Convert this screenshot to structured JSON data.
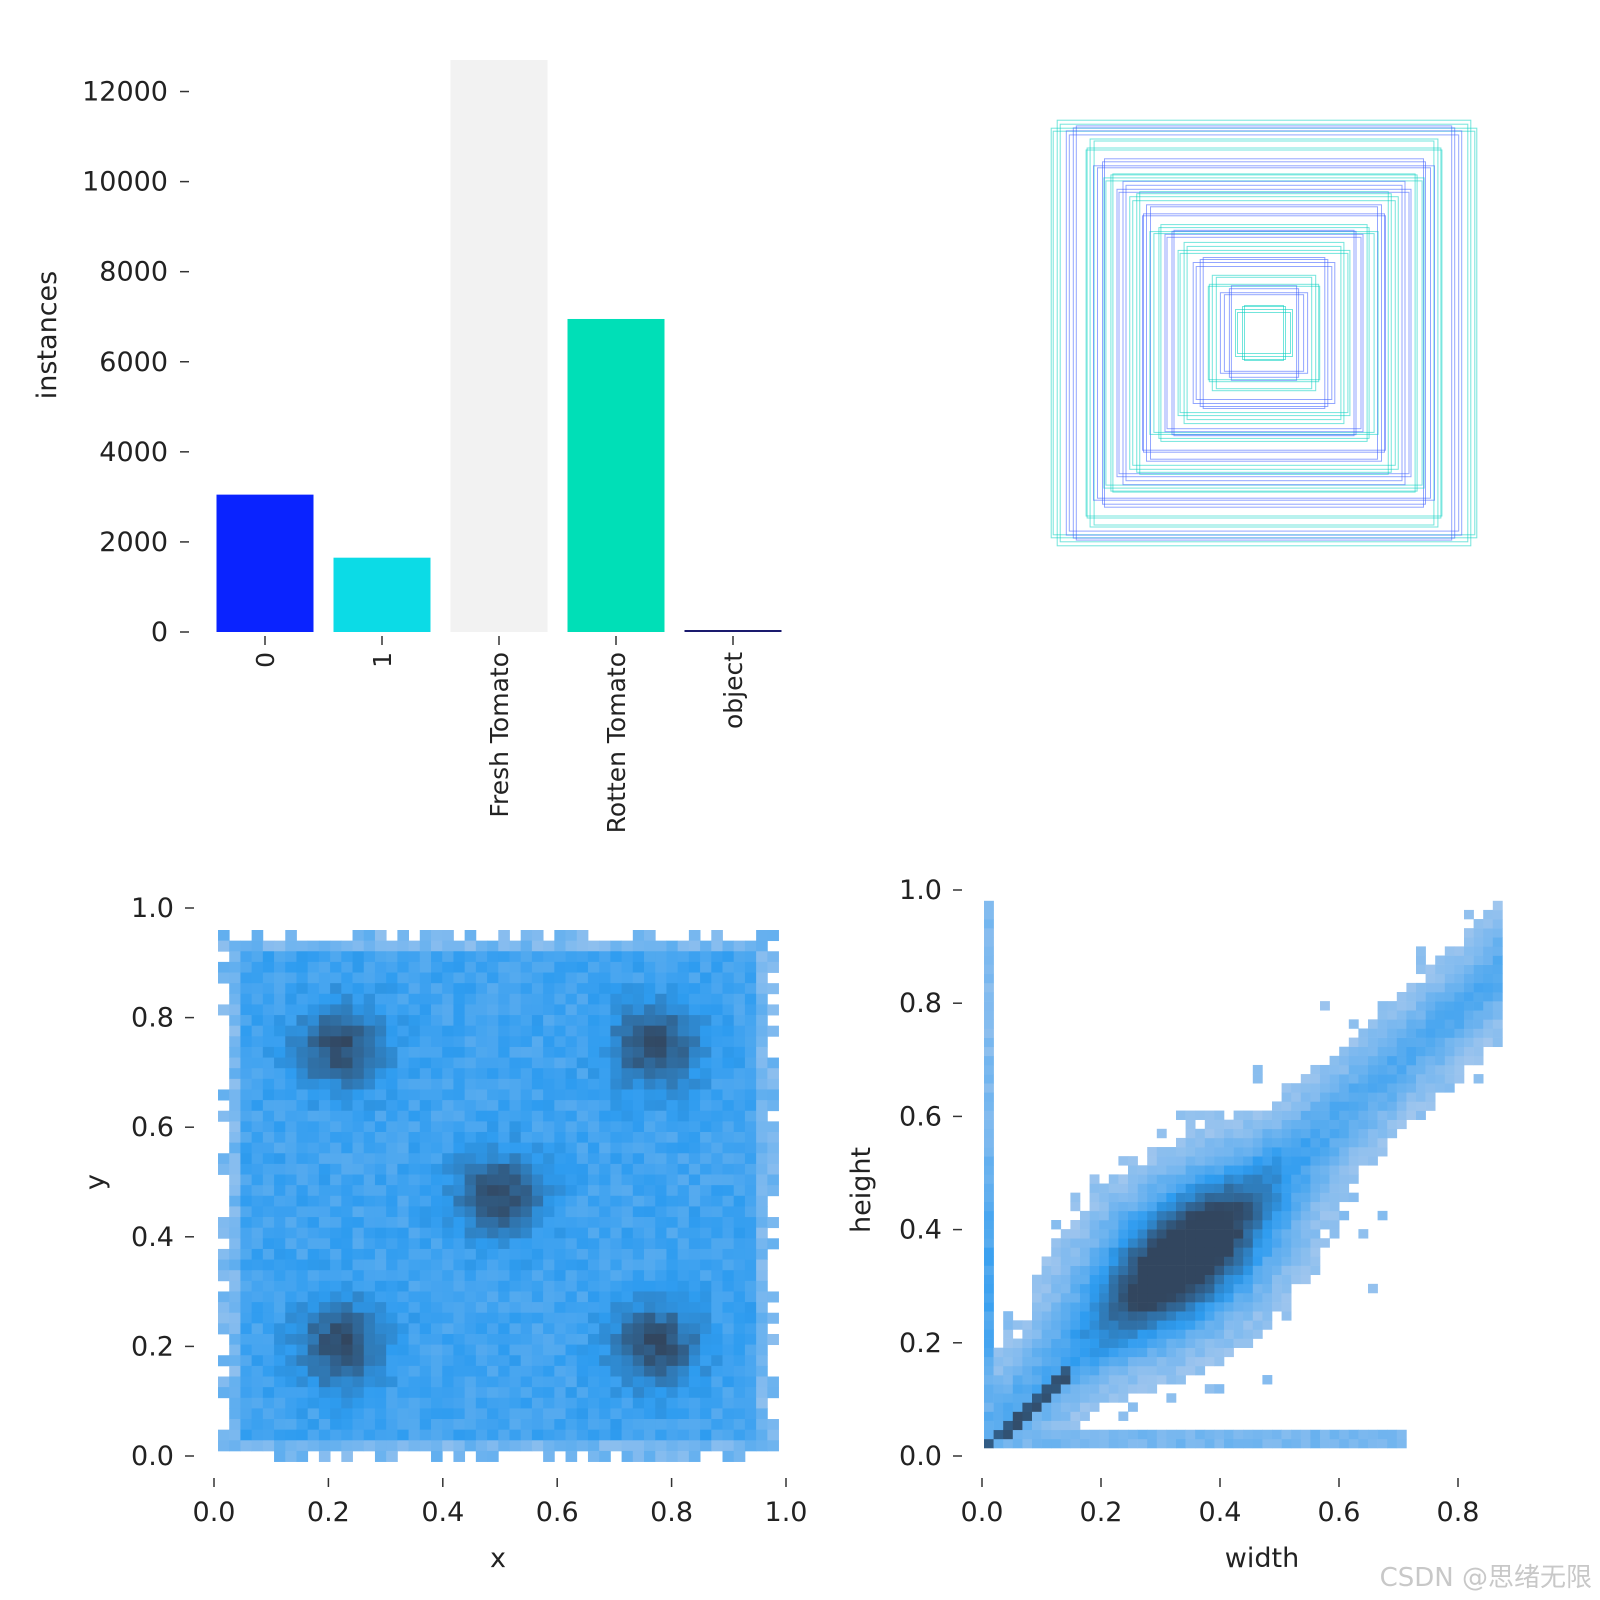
{
  "watermark": "CSDN @思绪无限",
  "chart_data": [
    {
      "type": "bar",
      "ylabel": "instances",
      "categories": [
        "0",
        "1",
        "Fresh Tomato",
        "Rotten Tomato",
        "object"
      ],
      "values": [
        3050,
        1650,
        12700,
        6950,
        40
      ],
      "colors": [
        "#0a23ff",
        "#0cdbe6",
        "#f2f2f2",
        "#00dfb7",
        "#1a1a6e"
      ],
      "ylim": [
        0,
        12700
      ],
      "yticks": [
        "0",
        "2000",
        "4000",
        "6000",
        "8000",
        "10000",
        "12000"
      ]
    },
    {
      "type": "boxes",
      "description_of": "bounding boxes overlay",
      "boxes": [
        {
          "w": 0.88,
          "h": 0.88,
          "color": "#00cfc0"
        },
        {
          "w": 0.82,
          "h": 0.86,
          "color": "#3a5cff"
        },
        {
          "w": 0.74,
          "h": 0.8,
          "color": "#00cfc0"
        },
        {
          "w": 0.7,
          "h": 0.72,
          "color": "#3a5cff"
        },
        {
          "w": 0.66,
          "h": 0.66,
          "color": "#00cfc0"
        },
        {
          "w": 0.6,
          "h": 0.62,
          "color": "#3a5cff"
        },
        {
          "w": 0.55,
          "h": 0.58,
          "color": "#00cfc0"
        },
        {
          "w": 0.5,
          "h": 0.52,
          "color": "#3a5cff"
        },
        {
          "w": 0.46,
          "h": 0.44,
          "color": "#00cfc0"
        },
        {
          "w": 0.4,
          "h": 0.42,
          "color": "#3a5cff"
        },
        {
          "w": 0.34,
          "h": 0.36,
          "color": "#00cfc0"
        },
        {
          "w": 0.28,
          "h": 0.3,
          "color": "#3a5cff"
        },
        {
          "w": 0.22,
          "h": 0.22,
          "color": "#00cfc0"
        },
        {
          "w": 0.16,
          "h": 0.18,
          "color": "#3a5cff"
        },
        {
          "w": 0.1,
          "h": 0.1,
          "color": "#00cfc0"
        }
      ]
    },
    {
      "type": "heatmap",
      "xlabel": "x",
      "ylabel": "y",
      "xlim": [
        0.0,
        1.0
      ],
      "ylim": [
        0.0,
        1.0
      ],
      "xticks": [
        "0.0",
        "0.2",
        "0.4",
        "0.6",
        "0.8",
        "1.0"
      ],
      "yticks": [
        "0.0",
        "0.2",
        "0.4",
        "0.6",
        "0.8",
        "1.0"
      ],
      "hotspots": [
        [
          0.22,
          0.78
        ],
        [
          0.78,
          0.78
        ],
        [
          0.5,
          0.5
        ],
        [
          0.22,
          0.22
        ],
        [
          0.78,
          0.22
        ]
      ],
      "extent": [
        0.0,
        0.98,
        0.02,
        0.99
      ]
    },
    {
      "type": "heatmap",
      "xlabel": "width",
      "ylabel": "height",
      "xlim": [
        0.0,
        0.95
      ],
      "ylim": [
        0.0,
        1.0
      ],
      "xticks": [
        "0.0",
        "0.2",
        "0.4",
        "0.6",
        "0.8"
      ],
      "yticks": [
        "0.0",
        "0.2",
        "0.4",
        "0.6",
        "0.8",
        "1.0"
      ],
      "hotspots": [
        [
          0.33,
          0.35
        ]
      ]
    }
  ],
  "colormap": {
    "light": "#a6c8ee",
    "mid": "#2e9cf0",
    "dark": "#32465f"
  }
}
